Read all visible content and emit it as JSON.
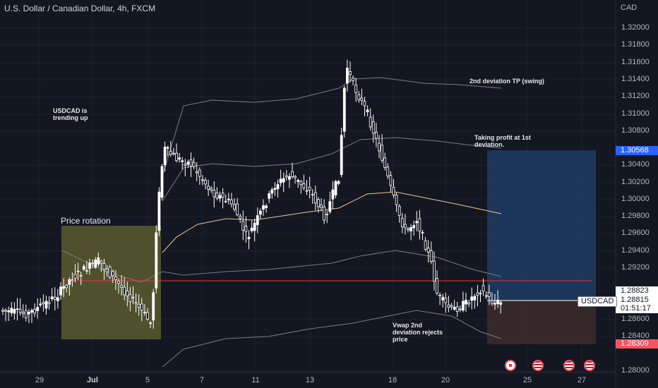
{
  "header": {
    "symbol_title": "U.S. Dollar / Canadian Dollar, 4h, FXCM"
  },
  "annotations": {
    "usdcad_trend": "USDCAD is\ntrending up",
    "tp_swing": "2nd deviation TP (swing)",
    "taking_profit": "Taking profit at 1st\ndeviation.",
    "price_rotation": "Price rotation",
    "vwap_reject": "Vwap 2nd\ndeviation rejects\nprice"
  },
  "price_axis": {
    "currency": "CAD",
    "ticks": [
      "1.32000",
      "1.31800",
      "1.31600",
      "1.31400",
      "1.31200",
      "1.31000",
      "1.30800",
      "1.30400",
      "1.30200",
      "1.30000",
      "1.29800",
      "1.29600",
      "1.29400",
      "1.29200",
      "1.28600",
      "1.28400",
      "1.28000"
    ]
  },
  "time_axis": {
    "ticks": [
      {
        "label": "29",
        "bold": false
      },
      {
        "label": "Jul",
        "bold": true
      },
      {
        "label": "5",
        "bold": false
      },
      {
        "label": "7",
        "bold": false
      },
      {
        "label": "11",
        "bold": false
      },
      {
        "label": "13",
        "bold": false
      },
      {
        "label": "18",
        "bold": false
      },
      {
        "label": "20",
        "bold": false
      },
      {
        "label": "25",
        "bold": false
      },
      {
        "label": "27",
        "bold": false
      }
    ]
  },
  "price_tags": {
    "take_profit": "1.30568",
    "last_price": "1.28823",
    "bid": "1.28815",
    "countdown": "01:51:17",
    "stop_loss": "1.28309",
    "symbol": "USDCAD"
  },
  "colors": {
    "background": "#131722",
    "candle_body": "#ffffff",
    "vwap": "#f5c48e",
    "band": "#787b86",
    "red_line": "#e53935",
    "profit_zone": "#1e3a5f",
    "loss_zone": "#3b2a2a",
    "rotation_box": "#5a5a2e"
  },
  "events": [
    {
      "icon": "canada-flag-icon",
      "flag": "ca"
    },
    {
      "icon": "us-flag-icon",
      "flag": "us"
    },
    {
      "icon": "us-flag-icon",
      "flag": "us"
    },
    {
      "icon": "us-flag-icon",
      "flag": "us"
    }
  ]
}
